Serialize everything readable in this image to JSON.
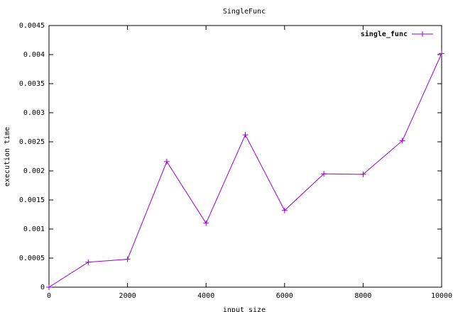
{
  "chart_data": {
    "type": "line",
    "title": "SingleFunc",
    "xlabel": "input size",
    "ylabel": "execution time",
    "x": [
      0,
      1000,
      2000,
      3000,
      4000,
      5000,
      6000,
      7000,
      8000,
      9000,
      10000
    ],
    "series": [
      {
        "name": "single_func",
        "color": "#9400d3",
        "values": [
          0,
          0.00043,
          0.00048,
          0.00216,
          0.0011,
          0.00262,
          0.00132,
          0.00195,
          0.00194,
          0.00252,
          0.00402
        ]
      }
    ],
    "xlim": [
      0,
      10000
    ],
    "xticks": [
      0,
      2000,
      4000,
      6000,
      8000,
      10000
    ],
    "ylim": [
      0,
      0.0045
    ],
    "yticks": [
      0,
      0.0005,
      0.001,
      0.0015,
      0.002,
      0.0025,
      0.003,
      0.0035,
      0.004,
      0.0045
    ],
    "legend": "upper right",
    "marker": "plus"
  }
}
